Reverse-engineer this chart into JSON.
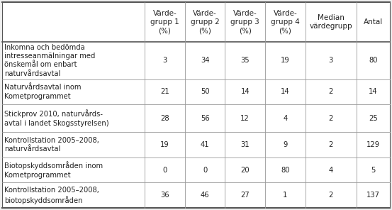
{
  "col_headers": [
    "Värde-\ngrupp 1\n(%)",
    "Värde-\ngrupp 2\n(%)",
    "Värde-\ngrupp 3\n(%)",
    "Värde-\ngrupp 4\n(%)",
    "Median\nvärdegrupp",
    "Antal"
  ],
  "row_labels": [
    "Inkomna och bedömda\nintresseanmälningar med\nönskemål om enbart\nnaturvårdsavtal",
    "Naturvårdsavtal inom\nKometprogrammet",
    "Stickprov 2010, naturvårds-\navtal i landet Skogsstyrelsen)",
    "Kontrollstation 2005–2008,\nnaturvårdsavtal",
    "Biotopskyddsområden inom\nKometprogrammet",
    "Kontrollstation 2005–2008,\nbiotopskyddsområden"
  ],
  "table_data": [
    [
      3,
      34,
      35,
      19,
      3,
      80
    ],
    [
      21,
      50,
      14,
      14,
      2,
      14
    ],
    [
      28,
      56,
      12,
      4,
      2,
      25
    ],
    [
      19,
      41,
      31,
      9,
      2,
      129
    ],
    [
      0,
      0,
      20,
      80,
      4,
      5
    ],
    [
      36,
      46,
      27,
      1,
      2,
      137
    ]
  ],
  "background_color": "#f0f0f0",
  "table_bg": "#ffffff",
  "line_color": "#999999",
  "border_color": "#555555",
  "text_color": "#222222",
  "font_size": 7.2,
  "header_font_size": 7.5
}
